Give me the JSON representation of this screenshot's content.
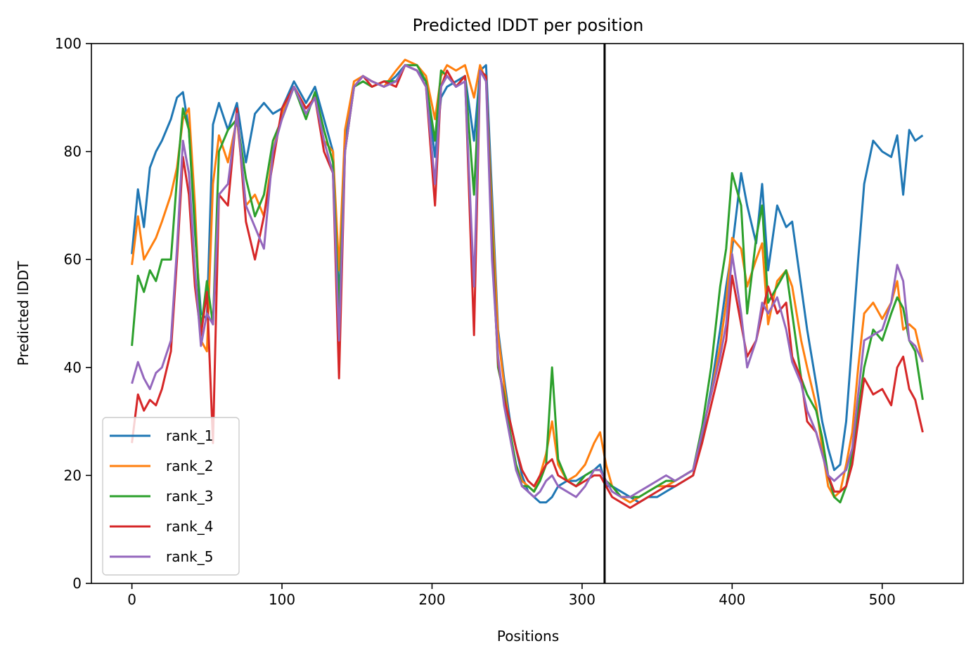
{
  "chart_data": {
    "type": "line",
    "title": "Predicted lDDT per position",
    "xlabel": "Positions",
    "ylabel": "Predicted lDDT",
    "xlim": [
      -27,
      554
    ],
    "ylim": [
      0,
      100
    ],
    "xticks": [
      0,
      100,
      200,
      300,
      400,
      500
    ],
    "yticks": [
      0,
      20,
      40,
      60,
      80,
      100
    ],
    "vline_x": 315,
    "grid": false,
    "legend_position": "lower-left",
    "series": [
      {
        "name": "rank_1",
        "color": "#1f77b4",
        "x": [
          0,
          4,
          8,
          12,
          16,
          20,
          26,
          30,
          34,
          38,
          42,
          46,
          50,
          54,
          58,
          64,
          70,
          76,
          82,
          88,
          94,
          100,
          108,
          116,
          122,
          128,
          134,
          138,
          142,
          148,
          154,
          160,
          168,
          176,
          182,
          190,
          196,
          202,
          206,
          210,
          216,
          222,
          228,
          232,
          236,
          240,
          244,
          248,
          252,
          256,
          260,
          264,
          268,
          272,
          276,
          280,
          284,
          290,
          296,
          302,
          308,
          312,
          316,
          320,
          326,
          332,
          338,
          344,
          350,
          356,
          362,
          368,
          374,
          380,
          386,
          392,
          396,
          400,
          406,
          410,
          416,
          420,
          424,
          430,
          436,
          440,
          446,
          450,
          456,
          460,
          464,
          468,
          472,
          476,
          480,
          484,
          488,
          494,
          500,
          506,
          510,
          514,
          518,
          522,
          527
        ],
        "y": [
          61,
          73,
          66,
          77,
          80,
          82,
          86,
          90,
          91,
          84,
          65,
          50,
          49,
          85,
          89,
          84,
          89,
          78,
          87,
          89,
          87,
          88,
          93,
          89,
          92,
          86,
          80,
          52,
          82,
          92,
          94,
          93,
          92,
          94,
          96,
          95,
          93,
          79,
          90,
          92,
          93,
          94,
          82,
          95,
          96,
          72,
          47,
          38,
          30,
          25,
          20,
          17,
          16,
          15,
          15,
          16,
          18,
          19,
          19,
          20,
          21,
          22,
          18,
          18,
          17,
          16,
          15,
          16,
          16,
          17,
          18,
          19,
          20,
          27,
          36,
          47,
          55,
          62,
          76,
          70,
          63,
          74,
          58,
          70,
          66,
          67,
          55,
          47,
          37,
          30,
          25,
          21,
          22,
          30,
          45,
          60,
          74,
          82,
          80,
          79,
          83,
          72,
          84,
          82,
          83
        ]
      },
      {
        "name": "rank_2",
        "color": "#ff7f0e",
        "x": [
          0,
          4,
          8,
          12,
          16,
          20,
          26,
          30,
          34,
          38,
          42,
          46,
          50,
          54,
          58,
          64,
          70,
          76,
          82,
          88,
          94,
          100,
          108,
          116,
          122,
          128,
          134,
          138,
          142,
          148,
          154,
          160,
          168,
          176,
          182,
          190,
          196,
          202,
          206,
          210,
          216,
          222,
          228,
          232,
          236,
          240,
          244,
          248,
          252,
          256,
          260,
          264,
          268,
          272,
          276,
          280,
          284,
          290,
          296,
          302,
          308,
          312,
          316,
          320,
          326,
          332,
          338,
          344,
          350,
          356,
          362,
          368,
          374,
          380,
          386,
          392,
          396,
          400,
          406,
          410,
          416,
          420,
          424,
          430,
          436,
          440,
          446,
          450,
          456,
          460,
          464,
          468,
          472,
          476,
          480,
          484,
          488,
          494,
          500,
          506,
          510,
          514,
          518,
          522,
          527
        ],
        "y": [
          59,
          68,
          60,
          62,
          64,
          67,
          72,
          77,
          86,
          88,
          70,
          45,
          43,
          74,
          83,
          78,
          86,
          70,
          72,
          68,
          80,
          87,
          92,
          88,
          90,
          82,
          80,
          58,
          84,
          93,
          94,
          93,
          92,
          95,
          97,
          96,
          94,
          86,
          94,
          96,
          95,
          96,
          90,
          96,
          93,
          69,
          46,
          37,
          28,
          22,
          19,
          18,
          17,
          20,
          24,
          30,
          22,
          19,
          20,
          22,
          26,
          28,
          22,
          18,
          16,
          15,
          16,
          17,
          18,
          18,
          19,
          20,
          21,
          28,
          35,
          44,
          52,
          64,
          62,
          55,
          60,
          63,
          48,
          56,
          58,
          55,
          45,
          40,
          33,
          25,
          18,
          16,
          17,
          22,
          28,
          40,
          50,
          52,
          49,
          52,
          56,
          47,
          48,
          47,
          41
        ]
      },
      {
        "name": "rank_3",
        "color": "#2ca02c",
        "x": [
          0,
          4,
          8,
          12,
          16,
          20,
          26,
          30,
          34,
          38,
          42,
          46,
          50,
          54,
          58,
          64,
          70,
          76,
          82,
          88,
          94,
          100,
          108,
          116,
          122,
          128,
          134,
          138,
          142,
          148,
          154,
          160,
          168,
          176,
          182,
          190,
          196,
          202,
          206,
          210,
          216,
          222,
          228,
          232,
          236,
          240,
          244,
          248,
          252,
          256,
          260,
          264,
          268,
          272,
          276,
          280,
          284,
          290,
          296,
          302,
          308,
          312,
          316,
          320,
          326,
          332,
          338,
          344,
          350,
          356,
          362,
          368,
          374,
          380,
          386,
          392,
          396,
          400,
          406,
          410,
          416,
          420,
          424,
          430,
          436,
          440,
          446,
          450,
          456,
          460,
          464,
          468,
          472,
          476,
          480,
          484,
          488,
          494,
          500,
          506,
          510,
          514,
          518,
          522,
          527
        ],
        "y": [
          44,
          57,
          54,
          58,
          56,
          60,
          60,
          75,
          88,
          84,
          66,
          47,
          56,
          48,
          80,
          84,
          86,
          75,
          68,
          72,
          82,
          86,
          92,
          86,
          91,
          84,
          78,
          50,
          80,
          92,
          93,
          92,
          93,
          93,
          96,
          96,
          93,
          82,
          95,
          94,
          92,
          94,
          72,
          95,
          94,
          65,
          40,
          35,
          28,
          22,
          18,
          18,
          17,
          19,
          22,
          40,
          23,
          19,
          18,
          20,
          21,
          21,
          19,
          18,
          16,
          16,
          16,
          17,
          18,
          19,
          19,
          20,
          21,
          29,
          40,
          55,
          62,
          76,
          70,
          50,
          64,
          70,
          52,
          55,
          58,
          50,
          38,
          35,
          32,
          27,
          20,
          16,
          15,
          18,
          24,
          32,
          40,
          47,
          45,
          50,
          53,
          51,
          45,
          43,
          34
        ]
      },
      {
        "name": "rank_4",
        "color": "#d62728",
        "x": [
          0,
          4,
          8,
          12,
          16,
          20,
          26,
          30,
          34,
          38,
          42,
          46,
          50,
          54,
          58,
          64,
          70,
          76,
          82,
          88,
          94,
          100,
          108,
          116,
          122,
          128,
          134,
          138,
          142,
          148,
          154,
          160,
          168,
          176,
          182,
          190,
          196,
          202,
          206,
          210,
          216,
          222,
          228,
          232,
          236,
          240,
          244,
          248,
          252,
          256,
          260,
          264,
          268,
          272,
          276,
          280,
          284,
          290,
          296,
          302,
          308,
          312,
          316,
          320,
          326,
          332,
          338,
          344,
          350,
          356,
          362,
          368,
          374,
          380,
          386,
          392,
          396,
          400,
          406,
          410,
          416,
          420,
          424,
          430,
          436,
          440,
          446,
          450,
          456,
          460,
          464,
          468,
          472,
          476,
          480,
          484,
          488,
          494,
          500,
          506,
          510,
          514,
          518,
          522,
          527
        ],
        "y": [
          26,
          35,
          32,
          34,
          33,
          36,
          43,
          60,
          79,
          72,
          55,
          46,
          54,
          26,
          72,
          70,
          88,
          67,
          60,
          68,
          78,
          88,
          92,
          88,
          90,
          80,
          76,
          38,
          80,
          92,
          94,
          92,
          93,
          92,
          96,
          95,
          92,
          70,
          92,
          95,
          92,
          94,
          46,
          95,
          94,
          62,
          41,
          34,
          30,
          25,
          21,
          19,
          18,
          20,
          22,
          23,
          20,
          19,
          18,
          19,
          20,
          20,
          18,
          16,
          15,
          14,
          15,
          16,
          17,
          18,
          18,
          19,
          20,
          26,
          33,
          40,
          45,
          57,
          48,
          42,
          45,
          50,
          55,
          50,
          52,
          42,
          38,
          30,
          28,
          24,
          20,
          17,
          17,
          18,
          22,
          30,
          38,
          35,
          36,
          33,
          40,
          42,
          36,
          34,
          28
        ]
      },
      {
        "name": "rank_5",
        "color": "#9467bd",
        "x": [
          0,
          4,
          8,
          12,
          16,
          20,
          26,
          30,
          34,
          38,
          42,
          46,
          50,
          54,
          58,
          64,
          70,
          76,
          82,
          88,
          94,
          100,
          108,
          116,
          122,
          128,
          134,
          138,
          142,
          148,
          154,
          160,
          168,
          176,
          182,
          190,
          196,
          202,
          206,
          210,
          216,
          222,
          228,
          232,
          236,
          240,
          244,
          248,
          252,
          256,
          260,
          264,
          268,
          272,
          276,
          280,
          284,
          290,
          296,
          302,
          308,
          312,
          316,
          320,
          326,
          332,
          338,
          344,
          350,
          356,
          362,
          368,
          374,
          380,
          386,
          392,
          396,
          400,
          406,
          410,
          416,
          420,
          424,
          430,
          436,
          440,
          446,
          450,
          456,
          460,
          464,
          468,
          472,
          476,
          480,
          484,
          488,
          494,
          500,
          506,
          510,
          514,
          518,
          522,
          527
        ],
        "y": [
          37,
          41,
          38,
          36,
          39,
          40,
          45,
          62,
          82,
          76,
          58,
          44,
          50,
          48,
          72,
          74,
          87,
          70,
          66,
          62,
          80,
          86,
          92,
          87,
          90,
          82,
          76,
          45,
          80,
          92,
          94,
          93,
          92,
          93,
          96,
          95,
          92,
          74,
          92,
          94,
          92,
          93,
          55,
          95,
          93,
          60,
          42,
          33,
          27,
          21,
          18,
          17,
          16,
          17,
          19,
          20,
          18,
          17,
          16,
          18,
          21,
          21,
          19,
          17,
          16,
          16,
          17,
          18,
          19,
          20,
          19,
          20,
          21,
          28,
          35,
          42,
          48,
          61,
          50,
          40,
          45,
          52,
          50,
          53,
          47,
          41,
          37,
          32,
          28,
          24,
          20,
          19,
          20,
          21,
          25,
          35,
          45,
          46,
          47,
          52,
          59,
          56,
          45,
          44,
          41
        ]
      }
    ]
  }
}
